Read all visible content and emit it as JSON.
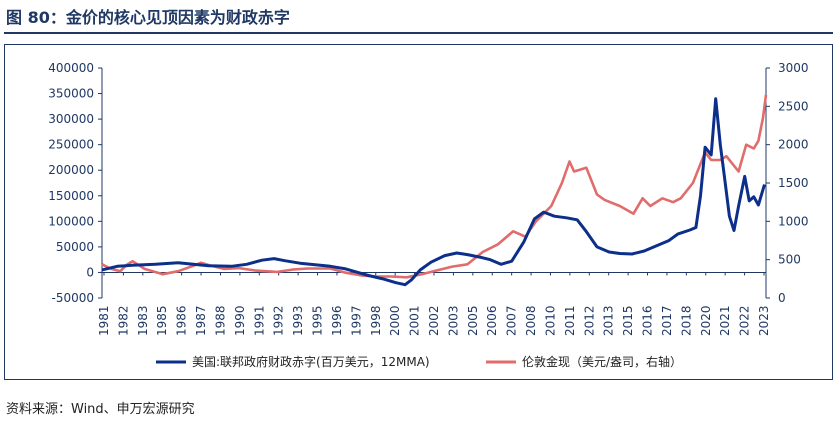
{
  "title": "图 80：金价的核心见顶因素为财政赤字",
  "source": "资料来源：Wind、申万宏源研究",
  "colors": {
    "series1": "#0b2f8a",
    "series2": "#e06c6c",
    "axis": "#1f3864"
  },
  "chart_data": {
    "type": "line",
    "title": "图 80：金价的核心见顶因素为财政赤字",
    "grid": false,
    "legend_position": "bottom",
    "x_ticks": [
      "1981",
      "1982",
      "1983",
      "1985",
      "1986",
      "1987",
      "1988",
      "1990",
      "1991",
      "1992",
      "1993",
      "1995",
      "1996",
      "1997",
      "1998",
      "2000",
      "2001",
      "2002",
      "2003",
      "2005",
      "2006",
      "2007",
      "2008",
      "2010",
      "2011",
      "2012",
      "2013",
      "2015",
      "2016",
      "2017",
      "2018",
      "2020",
      "2021",
      "2022",
      "2023"
    ],
    "y_left": {
      "range": [
        -50000,
        400000
      ],
      "ticks": [
        "-50000",
        "0",
        "50000",
        "100000",
        "150000",
        "200000",
        "250000",
        "300000",
        "350000",
        "400000"
      ]
    },
    "y_right": {
      "range": [
        0,
        3000
      ],
      "ticks": [
        "0",
        "500",
        "1000",
        "1500",
        "2000",
        "2500",
        "3000"
      ]
    },
    "series": [
      {
        "name": "美国:联邦政府财政赤字(百万美元，12MMA)",
        "axis": "left",
        "points": [
          [
            1981.0,
            5000
          ],
          [
            1982.0,
            12000
          ],
          [
            1983.0,
            14000
          ],
          [
            1984.5,
            16000
          ],
          [
            1986.0,
            19000
          ],
          [
            1987.0,
            16000
          ],
          [
            1988.0,
            13000
          ],
          [
            1989.5,
            12000
          ],
          [
            1990.5,
            16000
          ],
          [
            1991.5,
            24000
          ],
          [
            1992.3,
            27000
          ],
          [
            1993.0,
            23000
          ],
          [
            1994.0,
            18000
          ],
          [
            1995.0,
            15000
          ],
          [
            1996.0,
            12000
          ],
          [
            1997.0,
            7000
          ],
          [
            1997.8,
            0
          ],
          [
            1998.5,
            -6000
          ],
          [
            1999.5,
            -13000
          ],
          [
            2000.3,
            -20000
          ],
          [
            2000.9,
            -24000
          ],
          [
            2001.3,
            -15000
          ],
          [
            2001.9,
            5000
          ],
          [
            2002.6,
            20000
          ],
          [
            2003.5,
            33000
          ],
          [
            2004.3,
            38000
          ],
          [
            2005.0,
            35000
          ],
          [
            2005.8,
            30000
          ],
          [
            2006.5,
            25000
          ],
          [
            2007.2,
            16000
          ],
          [
            2007.9,
            22000
          ],
          [
            2008.7,
            60000
          ],
          [
            2009.4,
            105000
          ],
          [
            2010.0,
            118000
          ],
          [
            2010.7,
            110000
          ],
          [
            2011.5,
            107000
          ],
          [
            2012.2,
            103000
          ],
          [
            2012.8,
            80000
          ],
          [
            2013.5,
            50000
          ],
          [
            2014.3,
            40000
          ],
          [
            2015.0,
            37000
          ],
          [
            2015.8,
            36000
          ],
          [
            2016.6,
            42000
          ],
          [
            2017.4,
            52000
          ],
          [
            2018.2,
            62000
          ],
          [
            2018.8,
            75000
          ],
          [
            2019.6,
            83000
          ],
          [
            2020.0,
            88000
          ],
          [
            2020.3,
            150000
          ],
          [
            2020.6,
            245000
          ],
          [
            2021.0,
            230000
          ],
          [
            2021.3,
            340000
          ],
          [
            2021.6,
            250000
          ],
          [
            2021.9,
            180000
          ],
          [
            2022.2,
            110000
          ],
          [
            2022.5,
            82000
          ],
          [
            2022.8,
            130000
          ],
          [
            2023.2,
            188000
          ],
          [
            2023.5,
            140000
          ],
          [
            2023.8,
            148000
          ],
          [
            2024.1,
            132000
          ],
          [
            2024.5,
            172000
          ]
        ]
      },
      {
        "name": "伦敦金现（美元/盎司，右轴）",
        "axis": "right",
        "points": [
          [
            1981.0,
            440
          ],
          [
            1981.6,
            380
          ],
          [
            1982.2,
            350
          ],
          [
            1982.6,
            430
          ],
          [
            1983.0,
            480
          ],
          [
            1983.8,
            380
          ],
          [
            1985.0,
            310
          ],
          [
            1986.0,
            350
          ],
          [
            1987.0,
            420
          ],
          [
            1987.5,
            460
          ],
          [
            1988.0,
            430
          ],
          [
            1989.0,
            380
          ],
          [
            1990.0,
            390
          ],
          [
            1991.0,
            360
          ],
          [
            1992.5,
            340
          ],
          [
            1993.5,
            370
          ],
          [
            1994.5,
            385
          ],
          [
            1996.0,
            385
          ],
          [
            1997.0,
            330
          ],
          [
            1998.0,
            295
          ],
          [
            1999.0,
            280
          ],
          [
            2000.0,
            280
          ],
          [
            2001.0,
            270
          ],
          [
            2002.0,
            310
          ],
          [
            2003.0,
            360
          ],
          [
            2004.0,
            410
          ],
          [
            2005.0,
            440
          ],
          [
            2006.0,
            600
          ],
          [
            2007.0,
            700
          ],
          [
            2008.0,
            870
          ],
          [
            2008.8,
            800
          ],
          [
            2009.5,
            1000
          ],
          [
            2010.5,
            1200
          ],
          [
            2011.2,
            1500
          ],
          [
            2011.7,
            1780
          ],
          [
            2012.0,
            1650
          ],
          [
            2012.8,
            1700
          ],
          [
            2013.5,
            1350
          ],
          [
            2014.0,
            1280
          ],
          [
            2015.0,
            1200
          ],
          [
            2015.9,
            1100
          ],
          [
            2016.5,
            1300
          ],
          [
            2017.0,
            1200
          ],
          [
            2017.8,
            1300
          ],
          [
            2018.5,
            1250
          ],
          [
            2019.0,
            1300
          ],
          [
            2019.8,
            1500
          ],
          [
            2020.6,
            1900
          ],
          [
            2021.0,
            1800
          ],
          [
            2021.6,
            1800
          ],
          [
            2022.0,
            1850
          ],
          [
            2022.8,
            1650
          ],
          [
            2023.3,
            2000
          ],
          [
            2023.8,
            1950
          ],
          [
            2024.1,
            2050
          ],
          [
            2024.4,
            2350
          ],
          [
            2024.6,
            2650
          ]
        ]
      }
    ]
  }
}
